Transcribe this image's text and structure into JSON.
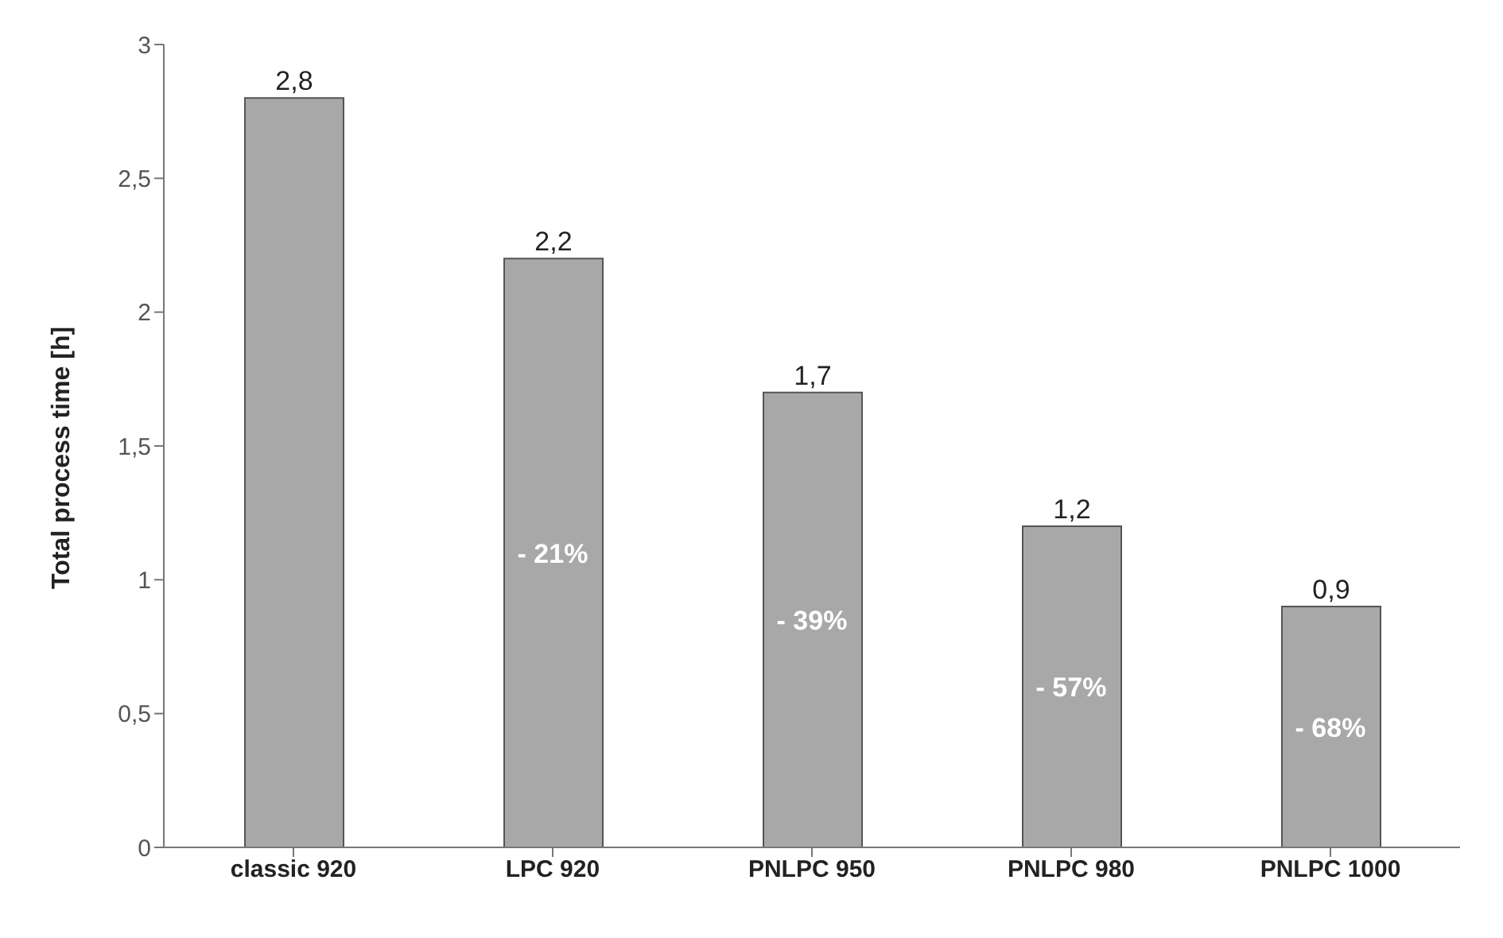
{
  "chart_data": {
    "type": "bar",
    "ylabel": "Total process time [h]",
    "categories": [
      "classic 920",
      "LPC 920",
      "PNLPC 950",
      "PNLPC 980",
      "PNLPC 1000"
    ],
    "values": [
      2.8,
      2.2,
      1.7,
      1.2,
      0.9
    ],
    "value_labels": [
      "2,8",
      "2,2",
      "1,7",
      "1,2",
      "0,9"
    ],
    "color": "#a8a8a8",
    "ylim": [
      0,
      3
    ],
    "yticks": [
      0,
      {
        "value": 0.5,
        "label": "0,5"
      },
      1,
      {
        "value": 1.5,
        "label": "1,5"
      },
      2,
      {
        "value": 2.5,
        "label": "2,5"
      },
      3
    ],
    "annotations": [
      "- 21%",
      "- 39%",
      "- 57%",
      "- 68%"
    ],
    "grid": false,
    "legend": false
  }
}
